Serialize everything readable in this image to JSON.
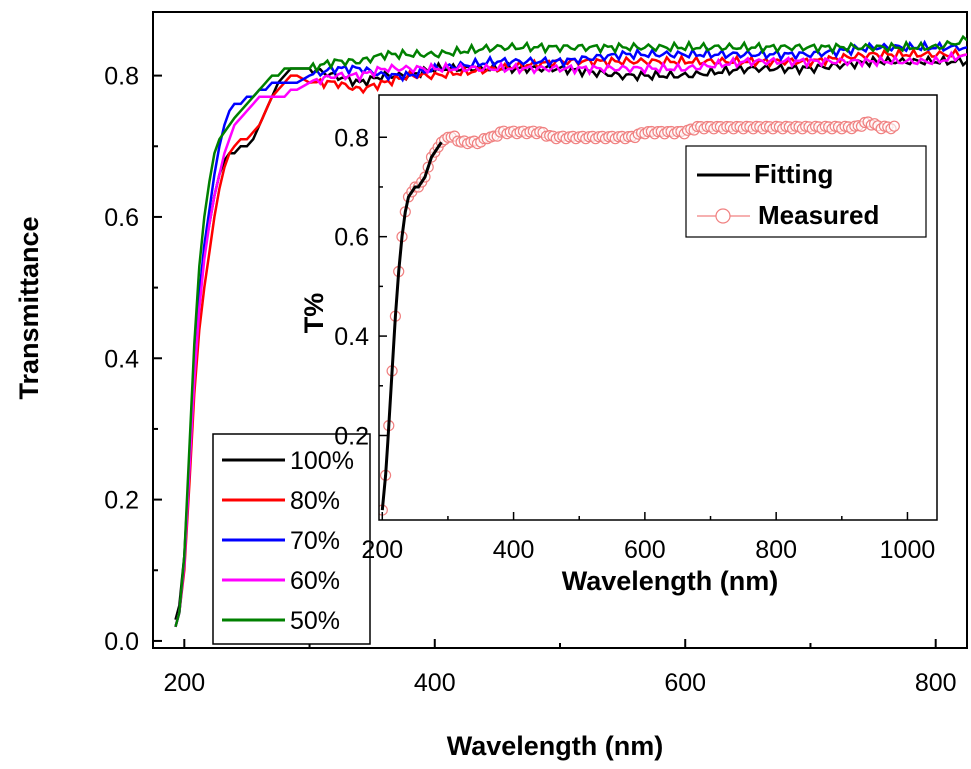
{
  "chart_data": [
    {
      "type": "line",
      "xlabel": "Wavelength (nm)",
      "ylabel": "Transmittance",
      "xlim": [
        175,
        825
      ],
      "ylim": [
        -0.01,
        0.89
      ],
      "xticks": [
        200,
        400,
        600,
        800
      ],
      "xtick_labels": [
        "200",
        "400",
        "600",
        "800"
      ],
      "yticks": [
        0.0,
        0.2,
        0.4,
        0.6,
        0.8
      ],
      "ytick_labels": [
        "0.0",
        "0.2",
        "0.4",
        "0.6",
        "0.8"
      ],
      "grid": false,
      "legend_position": "bottom-left",
      "series": [
        {
          "name": "100%",
          "color": "#000000",
          "x": [
            193,
            196,
            200,
            204,
            208,
            212,
            216,
            220,
            224,
            228,
            232,
            236,
            240,
            245,
            250,
            255,
            260,
            265,
            270,
            275,
            280,
            285,
            290,
            300,
            320,
            340,
            360,
            380,
            400,
            450,
            500,
            550,
            600,
            650,
            700,
            750,
            800,
            825
          ],
          "y": [
            0.03,
            0.05,
            0.12,
            0.25,
            0.39,
            0.49,
            0.55,
            0.59,
            0.63,
            0.66,
            0.68,
            0.69,
            0.69,
            0.7,
            0.7,
            0.71,
            0.73,
            0.75,
            0.77,
            0.79,
            0.8,
            0.81,
            0.81,
            0.81,
            0.8,
            0.79,
            0.8,
            0.8,
            0.81,
            0.81,
            0.81,
            0.8,
            0.8,
            0.81,
            0.81,
            0.82,
            0.82,
            0.82
          ]
        },
        {
          "name": "80%",
          "color": "#ff0000",
          "x": [
            193,
            196,
            200,
            204,
            208,
            212,
            216,
            220,
            224,
            228,
            232,
            236,
            240,
            245,
            250,
            255,
            260,
            265,
            270,
            275,
            280,
            285,
            290,
            300,
            320,
            340,
            360,
            380,
            400,
            450,
            500,
            550,
            600,
            650,
            700,
            750,
            800,
            825
          ],
          "y": [
            0.02,
            0.04,
            0.1,
            0.22,
            0.35,
            0.44,
            0.5,
            0.55,
            0.6,
            0.64,
            0.67,
            0.69,
            0.7,
            0.71,
            0.71,
            0.72,
            0.73,
            0.75,
            0.77,
            0.78,
            0.79,
            0.8,
            0.8,
            0.79,
            0.79,
            0.78,
            0.79,
            0.8,
            0.8,
            0.81,
            0.82,
            0.82,
            0.82,
            0.82,
            0.82,
            0.83,
            0.83,
            0.83
          ]
        },
        {
          "name": "70%",
          "color": "#0000ff",
          "x": [
            193,
            196,
            200,
            204,
            208,
            212,
            216,
            220,
            224,
            228,
            232,
            236,
            240,
            245,
            250,
            255,
            260,
            265,
            270,
            275,
            280,
            285,
            290,
            300,
            320,
            340,
            360,
            380,
            400,
            450,
            500,
            550,
            600,
            650,
            700,
            750,
            800,
            825
          ],
          "y": [
            0.02,
            0.04,
            0.11,
            0.24,
            0.38,
            0.49,
            0.56,
            0.61,
            0.66,
            0.7,
            0.73,
            0.75,
            0.76,
            0.76,
            0.77,
            0.77,
            0.78,
            0.78,
            0.79,
            0.79,
            0.79,
            0.79,
            0.79,
            0.8,
            0.81,
            0.81,
            0.8,
            0.8,
            0.81,
            0.82,
            0.82,
            0.83,
            0.83,
            0.83,
            0.83,
            0.84,
            0.84,
            0.84
          ]
        },
        {
          "name": "60%",
          "color": "#ff00ff",
          "x": [
            193,
            196,
            200,
            204,
            208,
            212,
            216,
            220,
            224,
            228,
            232,
            236,
            240,
            245,
            250,
            255,
            260,
            265,
            270,
            275,
            280,
            285,
            290,
            300,
            320,
            340,
            360,
            380,
            400,
            450,
            500,
            550,
            600,
            650,
            700,
            750,
            800,
            825
          ],
          "y": [
            0.02,
            0.04,
            0.11,
            0.24,
            0.37,
            0.47,
            0.54,
            0.59,
            0.63,
            0.66,
            0.69,
            0.71,
            0.73,
            0.74,
            0.75,
            0.76,
            0.77,
            0.77,
            0.77,
            0.77,
            0.77,
            0.78,
            0.78,
            0.79,
            0.8,
            0.8,
            0.81,
            0.81,
            0.81,
            0.81,
            0.81,
            0.81,
            0.81,
            0.82,
            0.82,
            0.82,
            0.82,
            0.83
          ]
        },
        {
          "name": "50%",
          "color": "#008000",
          "x": [
            193,
            196,
            200,
            204,
            208,
            212,
            216,
            220,
            224,
            228,
            232,
            236,
            240,
            245,
            250,
            255,
            260,
            265,
            270,
            275,
            280,
            285,
            290,
            300,
            320,
            340,
            360,
            380,
            400,
            450,
            500,
            550,
            600,
            650,
            700,
            750,
            800,
            825
          ],
          "y": [
            0.02,
            0.04,
            0.12,
            0.27,
            0.42,
            0.53,
            0.6,
            0.65,
            0.69,
            0.71,
            0.72,
            0.73,
            0.74,
            0.75,
            0.76,
            0.77,
            0.78,
            0.79,
            0.8,
            0.8,
            0.81,
            0.81,
            0.81,
            0.81,
            0.82,
            0.82,
            0.83,
            0.83,
            0.83,
            0.84,
            0.84,
            0.84,
            0.84,
            0.84,
            0.84,
            0.84,
            0.84,
            0.85
          ]
        }
      ]
    },
    {
      "type": "line",
      "xlabel": "Wavelength (nm)",
      "ylabel": "T%",
      "xlim": [
        195,
        1045
      ],
      "ylim": [
        0.03,
        0.885
      ],
      "xticks": [
        200,
        400,
        600,
        800,
        1000
      ],
      "xtick_labels": [
        "200",
        "400",
        "600",
        "800",
        "1000"
      ],
      "yticks": [
        0.2,
        0.4,
        0.6,
        0.8
      ],
      "ytick_labels": [
        "0.2",
        "0.4",
        "0.6",
        "0.8"
      ],
      "grid": false,
      "legend_position": "top-right",
      "series": [
        {
          "name": "Fitting",
          "color": "#000000",
          "style": "line",
          "x": [
            200,
            205,
            210,
            215,
            220,
            225,
            230,
            235,
            240,
            245,
            250,
            255,
            260,
            265,
            270,
            275,
            280,
            285,
            290
          ],
          "y": [
            0.05,
            0.12,
            0.22,
            0.33,
            0.44,
            0.53,
            0.6,
            0.65,
            0.68,
            0.69,
            0.7,
            0.7,
            0.71,
            0.72,
            0.74,
            0.76,
            0.77,
            0.78,
            0.79
          ]
        },
        {
          "name": "Measured",
          "color": "#f08080",
          "style": "open-circles",
          "x": [
            200,
            205,
            210,
            215,
            220,
            225,
            230,
            235,
            240,
            245,
            250,
            255,
            260,
            265,
            270,
            275,
            280,
            285,
            290,
            300,
            310,
            320,
            330,
            340,
            350,
            360,
            370,
            380,
            390,
            400,
            420,
            440,
            460,
            480,
            500,
            520,
            540,
            560,
            580,
            600,
            620,
            640,
            660,
            680,
            700,
            720,
            740,
            760,
            780,
            800,
            820,
            840,
            860,
            880,
            900,
            920,
            940,
            960,
            980
          ],
          "y": [
            0.05,
            0.12,
            0.22,
            0.33,
            0.44,
            0.53,
            0.6,
            0.65,
            0.68,
            0.69,
            0.7,
            0.7,
            0.71,
            0.72,
            0.74,
            0.76,
            0.77,
            0.78,
            0.79,
            0.8,
            0.8,
            0.79,
            0.79,
            0.79,
            0.79,
            0.8,
            0.8,
            0.81,
            0.81,
            0.81,
            0.81,
            0.81,
            0.8,
            0.8,
            0.8,
            0.8,
            0.8,
            0.8,
            0.8,
            0.81,
            0.81,
            0.81,
            0.81,
            0.82,
            0.82,
            0.82,
            0.82,
            0.82,
            0.82,
            0.82,
            0.82,
            0.82,
            0.82,
            0.82,
            0.82,
            0.82,
            0.83,
            0.82,
            0.82
          ]
        }
      ]
    }
  ]
}
